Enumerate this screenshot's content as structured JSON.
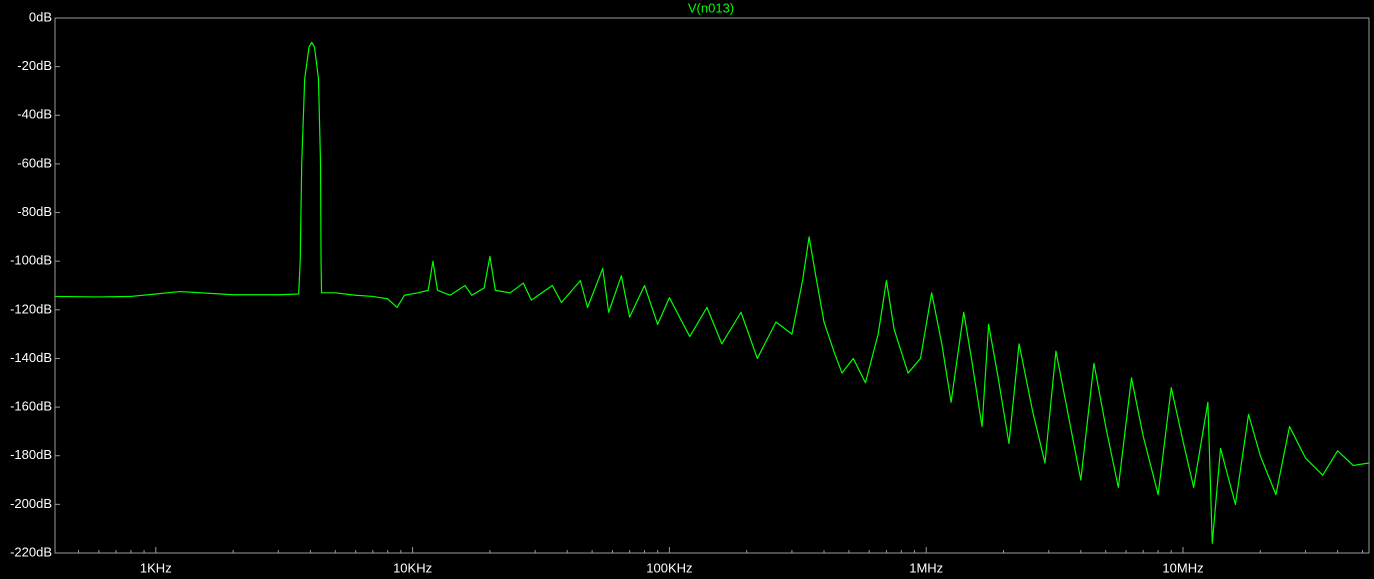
{
  "chart_data": {
    "type": "line",
    "xscale": "log",
    "frame_color": "#9a9a9a",
    "label_color": "#ffffff",
    "xlim": [
      405,
      53000000
    ],
    "ylim": [
      -220,
      0
    ],
    "xticks": [
      {
        "value": 1000,
        "label": "1KHz"
      },
      {
        "value": 10000,
        "label": "10KHz"
      },
      {
        "value": 100000,
        "label": "100KHz"
      },
      {
        "value": 1000000,
        "label": "1MHz"
      },
      {
        "value": 10000000,
        "label": "10MHz"
      }
    ],
    "xminorticks": [
      500,
      600,
      700,
      800,
      900,
      2000,
      3000,
      4000,
      5000,
      6000,
      7000,
      8000,
      9000,
      20000,
      30000,
      40000,
      50000,
      60000,
      70000,
      80000,
      90000,
      200000,
      300000,
      400000,
      500000,
      600000,
      700000,
      800000,
      900000,
      2000000,
      3000000,
      4000000,
      5000000,
      6000000,
      7000000,
      8000000,
      9000000,
      20000000,
      30000000,
      40000000,
      50000000
    ],
    "yticks": [
      {
        "value": 0,
        "label": "0dB"
      },
      {
        "value": -20,
        "label": "-20dB"
      },
      {
        "value": -40,
        "label": "-40dB"
      },
      {
        "value": -60,
        "label": "-60dB"
      },
      {
        "value": -80,
        "label": "-80dB"
      },
      {
        "value": -100,
        "label": "-100dB"
      },
      {
        "value": -120,
        "label": "-120dB"
      },
      {
        "value": -140,
        "label": "-140dB"
      },
      {
        "value": -160,
        "label": "-160dB"
      },
      {
        "value": -180,
        "label": "-180dB"
      },
      {
        "value": -200,
        "label": "-200dB"
      },
      {
        "value": -220,
        "label": "-220dB"
      }
    ],
    "x": [
      405,
      600,
      800,
      1000,
      1240,
      1600,
      2000,
      3000,
      3600,
      3650,
      3700,
      3800,
      3950,
      4050,
      4150,
      4300,
      4380,
      4400,
      4420,
      5000,
      6000,
      7000,
      8000,
      8700,
      9300,
      10500,
      11500,
      12000,
      12500,
      14000,
      16000,
      17000,
      19000,
      20000,
      21000,
      24000,
      27000,
      29000,
      35000,
      38000,
      45000,
      48000,
      55000,
      58000,
      65000,
      70000,
      80000,
      90000,
      100000,
      120000,
      140000,
      160000,
      190000,
      220000,
      260000,
      300000,
      330000,
      350000,
      370000,
      400000,
      440000,
      470000,
      520000,
      580000,
      650000,
      700000,
      750000,
      850000,
      950000,
      1050000,
      1150000,
      1250000,
      1400000,
      1500000,
      1650000,
      1750000,
      1900000,
      2100000,
      2300000,
      2600000,
      2900000,
      3200000,
      3600000,
      4000000,
      4500000,
      5000000,
      5600000,
      6300000,
      7000000,
      8000000,
      9000000,
      10000000,
      11000000,
      12500000,
      13000000,
      14000000,
      16000000,
      18000000,
      20000000,
      23000000,
      26000000,
      30000000,
      35000000,
      40000000,
      46000000,
      53000000
    ],
    "series": [
      {
        "name": "V(n013)",
        "color": "#00ff00",
        "values": [
          -114.5,
          -114.7,
          -114.5,
          -113.5,
          -112.5,
          -113.2,
          -113.8,
          -113.8,
          -113.5,
          -100,
          -60,
          -25,
          -12,
          -10,
          -12,
          -25,
          -60,
          -100,
          -113,
          -113,
          -114,
          -114.5,
          -115.5,
          -119,
          -114,
          -113,
          -112,
          -100,
          -112,
          -114,
          -110,
          -114,
          -111,
          -98,
          -112,
          -113,
          -109,
          -116,
          -110,
          -117,
          -108,
          -119,
          -103,
          -121,
          -106,
          -123,
          -110,
          -126,
          -115,
          -131,
          -119,
          -134,
          -121,
          -140,
          -125,
          -130,
          -108,
          -90,
          -105,
          -125,
          -138,
          -146,
          -140,
          -150,
          -130,
          -108,
          -128,
          -146,
          -140,
          -113,
          -134,
          -158,
          -121,
          -140,
          -168,
          -126,
          -147,
          -175,
          -134,
          -162,
          -183,
          -137,
          -165,
          -190,
          -142,
          -168,
          -193,
          -148,
          -172,
          -196,
          -152,
          -174,
          -193,
          -158,
          -216,
          -177,
          -200,
          -163,
          -180,
          -196,
          -168,
          -181,
          -188,
          -178,
          -184,
          -183
        ]
      }
    ]
  }
}
